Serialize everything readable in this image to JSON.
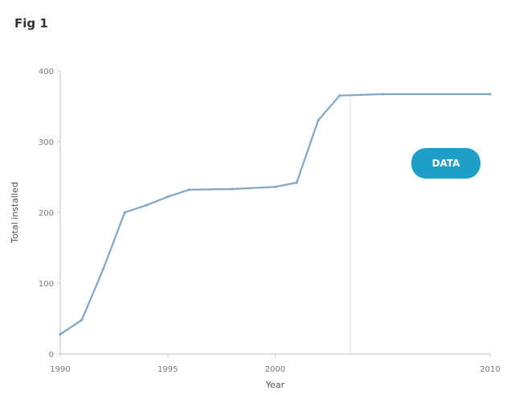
{
  "chart_data": {
    "type": "line",
    "title": "Fig 1",
    "xlabel": "Year",
    "ylabel": "Total installed",
    "x_tick_labels": [
      "1990",
      "1995",
      "2000",
      "2010"
    ],
    "y_tick_labels": [
      "0",
      "100",
      "200",
      "300",
      "400"
    ],
    "ylim": [
      0,
      400
    ],
    "grid": false,
    "legend": "none",
    "series": [
      {
        "color": "#7ea6c8",
        "points": [
          {
            "x": 1990,
            "y": 28
          },
          {
            "x": 1991,
            "y": 48
          },
          {
            "x": 1992,
            "y": 120
          },
          {
            "x": 1993,
            "y": 200
          },
          {
            "x": 1994,
            "y": 210
          },
          {
            "x": 1995,
            "y": 222
          },
          {
            "x": 1996,
            "y": 232
          },
          {
            "x": 1998,
            "y": 233
          },
          {
            "x": 2000,
            "y": 236
          },
          {
            "x": 2001,
            "y": 242
          },
          {
            "x": 2002,
            "y": 330
          },
          {
            "x": 2003,
            "y": 365
          },
          {
            "x": 2005,
            "y": 367
          },
          {
            "x": 2010,
            "y": 367
          }
        ]
      }
    ],
    "reference_line_x": 2003.5,
    "badge": {
      "text": "DATA",
      "color": "#1e9fc8"
    }
  }
}
